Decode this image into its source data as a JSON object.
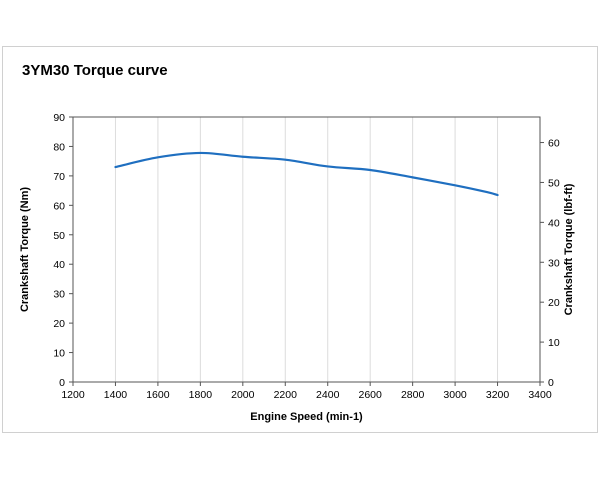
{
  "chart_data": {
    "type": "line",
    "title": "3YM30 Torque curve",
    "xlabel": "Engine Speed (min-1)",
    "ylabel": "Crankshaft Torque (Nm)",
    "y2label": "Crankshaft Torque (lbf-ft)",
    "xlim": [
      1200,
      3400
    ],
    "ylim": [
      0,
      90
    ],
    "y2lim": [
      0,
      66.4
    ],
    "x_ticks": [
      "1200",
      "1400",
      "1600",
      "1800",
      "2000",
      "2200",
      "2400",
      "2600",
      "2800",
      "3000",
      "3200",
      "3400"
    ],
    "y_ticks": [
      "0",
      "10",
      "20",
      "30",
      "40",
      "50",
      "60",
      "70",
      "80",
      "90"
    ],
    "y2_ticks": [
      "0",
      "10",
      "20",
      "30",
      "40",
      "50",
      "60"
    ],
    "grid": "vertical",
    "line_color": "#1f6fc0",
    "series": [
      {
        "x": [
          1400,
          1600,
          1800,
          2000,
          2200,
          2400,
          2600,
          2800,
          3000,
          3150,
          3200
        ],
        "y": [
          73.0,
          76.3,
          77.8,
          76.5,
          75.5,
          73.2,
          72.0,
          69.5,
          66.8,
          64.5,
          63.5
        ]
      }
    ]
  }
}
